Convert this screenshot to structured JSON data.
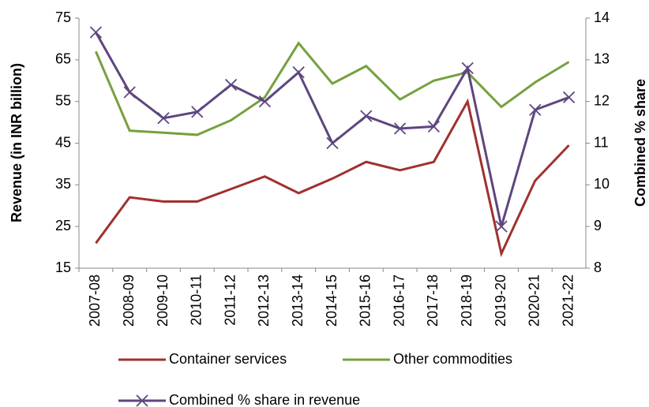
{
  "chart_data": {
    "type": "line",
    "categories": [
      "2007-08",
      "2008-09",
      "2009-10",
      "2010-11",
      "2011-12",
      "2012-13",
      "2013-14",
      "2014-15",
      "2015-16",
      "2016-17",
      "2017-18",
      "2018-19",
      "2019-20",
      "2020-21",
      "2021-22"
    ],
    "series": [
      {
        "name": "Container services",
        "color": "#a0312e",
        "values": [
          21,
          32,
          31,
          31,
          34,
          37,
          33,
          36.5,
          40.5,
          38.5,
          40.5,
          55,
          18.5,
          36,
          44.5
        ]
      },
      {
        "name": "Other commodities",
        "color": "#77a03e",
        "values": [
          67,
          48,
          47.5,
          47,
          50.5,
          56,
          69,
          59.3,
          63.5,
          55.5,
          60,
          62,
          53.7,
          59.6,
          64.5
        ]
      },
      {
        "name": "Combined % share in revenue",
        "color": "#5e467f",
        "axis": "y2",
        "marker": "x",
        "values": [
          13.66,
          12.22,
          11.6,
          11.75,
          12.4,
          12.0,
          12.7,
          11.0,
          11.65,
          11.35,
          11.4,
          12.8,
          9.0,
          11.8,
          12.1
        ]
      }
    ],
    "ylabel": "Revenue (in INR billion)",
    "y2label": "Combined % share",
    "ylim": [
      15,
      75
    ],
    "yticks": [
      15,
      25,
      35,
      45,
      55,
      65,
      75
    ],
    "y2lim": [
      8,
      14
    ],
    "y2ticks": [
      8,
      9,
      10,
      11,
      12,
      13,
      14
    ]
  }
}
